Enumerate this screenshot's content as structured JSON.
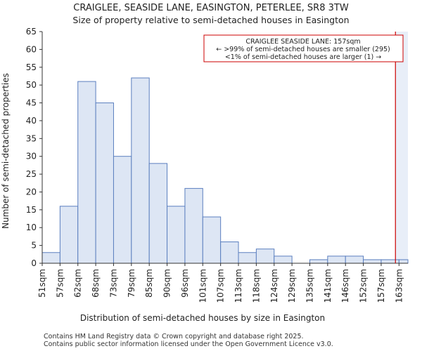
{
  "chart_data": {
    "type": "bar",
    "title": "CRAIGLEE, SEASIDE LANE, EASINGTON, PETERLEE, SR8 3TW",
    "subtitle": "Size of property relative to semi-detached houses in Easington",
    "xlabel": "Distribution of semi-detached houses by size in Easington",
    "ylabel": "Number of semi-detached properties",
    "ylim": [
      0,
      65
    ],
    "yticks": [
      0,
      5,
      10,
      15,
      20,
      25,
      30,
      35,
      40,
      45,
      50,
      55,
      60,
      65
    ],
    "x_tick_labels": [
      "51sqm",
      "57sqm",
      "62sqm",
      "68sqm",
      "73sqm",
      "79sqm",
      "85sqm",
      "90sqm",
      "96sqm",
      "101sqm",
      "107sqm",
      "113sqm",
      "118sqm",
      "124sqm",
      "129sqm",
      "135sqm",
      "141sqm",
      "146sqm",
      "152sqm",
      "157sqm",
      "163sqm"
    ],
    "values": [
      3,
      16,
      51,
      45,
      30,
      52,
      28,
      16,
      21,
      13,
      6,
      3,
      4,
      2,
      0,
      1,
      2,
      2,
      1,
      1
    ],
    "grid": false,
    "marker": {
      "value_sqm": 157,
      "color": "#cc0000"
    },
    "annotation": {
      "lines": [
        "CRAIGLEE SEASIDE LANE: 157sqm",
        "← >99% of semi-detached houses are smaller (295)",
        "<1% of semi-detached houses are larger (1) →"
      ],
      "placement": "top-right"
    },
    "colors": {
      "bar_fill": "#dde6f4",
      "bar_edge": "#5b7fbf",
      "highlight_region": "#e8eef8"
    }
  },
  "footer": {
    "line1": "Contains HM Land Registry data © Crown copyright and database right 2025.",
    "line2": "Contains public sector information licensed under the Open Government Licence v3.0."
  }
}
